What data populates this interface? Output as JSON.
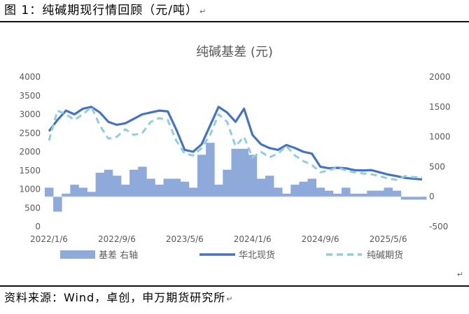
{
  "figure_title": "图 1：纯碱期现行情回顾（元/吨）",
  "source_text": "资料来源：Wind，卓创，申万期货研究所",
  "para_mark": "↵",
  "colors": {
    "basis_fill": "#8EAADB",
    "spot_line": "#4472C4",
    "futures_line": "#92CDDC",
    "axis_text": "#595959"
  },
  "chart_data": {
    "type": "bar",
    "title": "纯碱基差（元）",
    "title_display": "纯碱基差 (元)",
    "x_tick_labels": [
      "2022/1/6",
      "2022/9/6",
      "2023/5/6",
      "2024/1/6",
      "2024/9/6",
      "2025/5/6"
    ],
    "left_axis": {
      "ylim": [
        0,
        4000
      ],
      "ticks": [
        0,
        500,
        1000,
        1500,
        2000,
        2500,
        3000,
        3500,
        4000
      ]
    },
    "right_axis": {
      "ylim": [
        -500,
        2000
      ],
      "ticks": [
        -500,
        0,
        500,
        1000,
        1500,
        2000
      ]
    },
    "grid": false,
    "legend_position": "bottom",
    "legend": [
      "基差 右轴",
      "华北现货",
      "纯碱期货"
    ],
    "x": [
      "2022-01",
      "2022-02",
      "2022-03",
      "2022-04",
      "2022-05",
      "2022-06",
      "2022-07",
      "2022-08",
      "2022-09",
      "2022-10",
      "2022-11",
      "2022-12",
      "2023-01",
      "2023-02",
      "2023-03",
      "2023-04",
      "2023-05",
      "2023-06",
      "2023-07",
      "2023-08",
      "2023-09",
      "2023-10",
      "2023-11",
      "2023-12",
      "2024-01",
      "2024-02",
      "2024-03",
      "2024-04",
      "2024-05",
      "2024-06",
      "2024-07",
      "2024-08",
      "2024-09",
      "2024-10",
      "2024-11",
      "2024-12",
      "2025-01",
      "2025-02",
      "2025-03",
      "2025-04",
      "2025-05",
      "2025-06",
      "2025-07",
      "2025-08",
      "2025-09"
    ],
    "series": [
      {
        "name": "华北现货",
        "axis": "left",
        "style": "solid",
        "values": [
          2550,
          2850,
          3100,
          3000,
          3150,
          3200,
          3050,
          2800,
          2720,
          2760,
          2880,
          3000,
          3050,
          3100,
          3080,
          2600,
          2050,
          2000,
          2200,
          2700,
          3200,
          3050,
          2800,
          3150,
          2450,
          2200,
          2100,
          2050,
          2180,
          2100,
          2000,
          1950,
          1600,
          1560,
          1570,
          1560,
          1510,
          1500,
          1510,
          1450,
          1390,
          1350,
          1300,
          1280,
          1260
        ]
      },
      {
        "name": "纯碱期货",
        "axis": "left",
        "style": "dashed",
        "values": [
          2300,
          3100,
          3000,
          2850,
          3000,
          3200,
          2700,
          2350,
          2400,
          2600,
          2450,
          2500,
          2800,
          2900,
          2850,
          2300,
          1950,
          1900,
          2100,
          2450,
          3000,
          2800,
          2150,
          2400,
          1850,
          2000,
          1850,
          1950,
          2150,
          1900,
          1750,
          1650,
          1450,
          1500,
          1580,
          1500,
          1450,
          1420,
          1400,
          1350,
          1280,
          1250,
          1350,
          1320,
          1320
        ]
      },
      {
        "name": "基差 右轴",
        "axis": "right",
        "style": "area",
        "values": [
          150,
          -250,
          50,
          200,
          150,
          80,
          400,
          450,
          350,
          200,
          450,
          500,
          300,
          200,
          300,
          300,
          250,
          150,
          700,
          900,
          200,
          450,
          800,
          800,
          700,
          300,
          350,
          150,
          50,
          200,
          250,
          300,
          150,
          100,
          50,
          150,
          50,
          50,
          100,
          100,
          150,
          100,
          -50,
          -50,
          -50
        ]
      }
    ]
  }
}
